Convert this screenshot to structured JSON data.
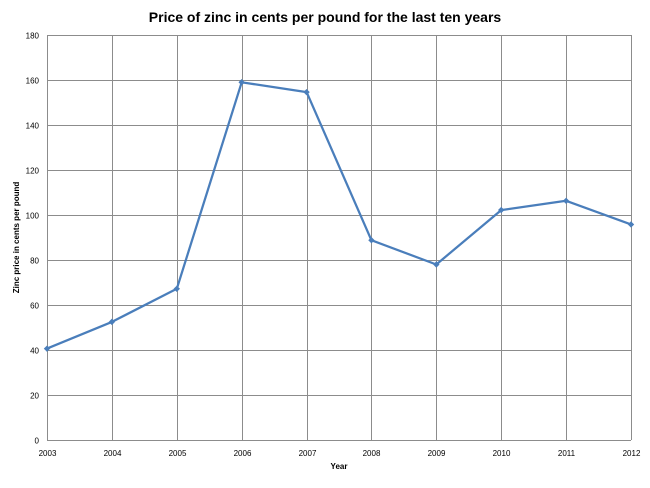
{
  "chart_data": {
    "type": "line",
    "title": "Price of zinc in cents per pound for the last ten years",
    "xlabel": "Year",
    "ylabel": "Zinc price in cents per pound",
    "categories": [
      "2003",
      "2004",
      "2005",
      "2006",
      "2007",
      "2008",
      "2009",
      "2010",
      "2011",
      "2012"
    ],
    "series": [
      {
        "values": [
          40.6,
          52.5,
          67.2,
          159.0,
          154.6,
          88.8,
          78.0,
          102.2,
          106.3,
          95.8
        ]
      }
    ],
    "ylim": [
      0,
      180
    ],
    "yticks": [
      0,
      20,
      40,
      60,
      80,
      100,
      120,
      140,
      160,
      180
    ],
    "grid": true,
    "legend": "none",
    "colors": {
      "line": "#4a7ebb",
      "grid": "#8c8c8c"
    }
  }
}
